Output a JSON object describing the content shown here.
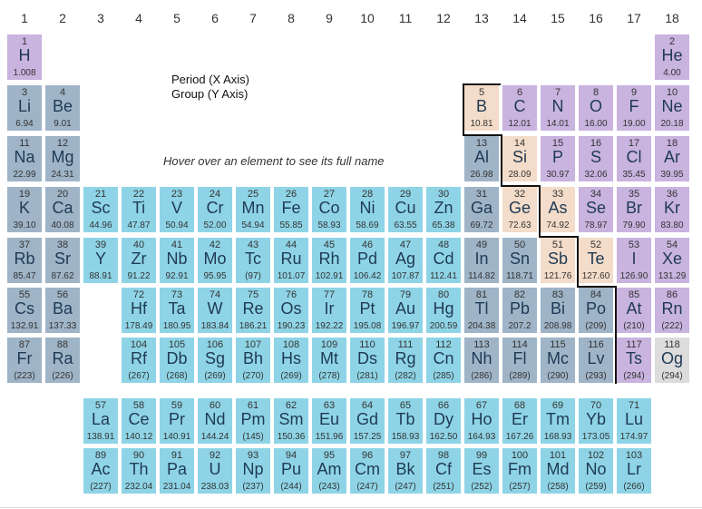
{
  "group_numbers": [
    "1",
    "2",
    "3",
    "4",
    "5",
    "6",
    "7",
    "8",
    "9",
    "10",
    "11",
    "12",
    "13",
    "14",
    "15",
    "16",
    "17",
    "18"
  ],
  "legend": {
    "x_axis": "Period (X Axis)",
    "y_axis": "Group (Y Axis)"
  },
  "hint": "Hover over an element to see its full name",
  "category_colors": {
    "nonmetal": "#c9b3df",
    "alkali": "#9fb4c7",
    "transition": "#8ed4e6",
    "post": "#9fb4c7",
    "metalloid": "#f3dcc9",
    "noble": "#c9b3df",
    "unknown": "#dcdcdc"
  },
  "elements": [
    {
      "n": "1",
      "s": "H",
      "m": "1.008",
      "c": "nonmetal",
      "r": 1,
      "g": 1
    },
    {
      "n": "2",
      "s": "He",
      "m": "4.00",
      "c": "noble",
      "r": 1,
      "g": 18
    },
    {
      "n": "3",
      "s": "Li",
      "m": "6.94",
      "c": "alkali",
      "r": 2,
      "g": 1
    },
    {
      "n": "4",
      "s": "Be",
      "m": "9.01",
      "c": "alkaline",
      "r": 2,
      "g": 2
    },
    {
      "n": "5",
      "s": "B",
      "m": "10.81",
      "c": "metalloid",
      "r": 2,
      "g": 13
    },
    {
      "n": "6",
      "s": "C",
      "m": "12.01",
      "c": "nonmetal",
      "r": 2,
      "g": 14
    },
    {
      "n": "7",
      "s": "N",
      "m": "14.01",
      "c": "nonmetal",
      "r": 2,
      "g": 15
    },
    {
      "n": "8",
      "s": "O",
      "m": "16.00",
      "c": "nonmetal",
      "r": 2,
      "g": 16
    },
    {
      "n": "9",
      "s": "F",
      "m": "19.00",
      "c": "nonmetal",
      "r": 2,
      "g": 17
    },
    {
      "n": "10",
      "s": "Ne",
      "m": "20.18",
      "c": "noble",
      "r": 2,
      "g": 18
    },
    {
      "n": "11",
      "s": "Na",
      "m": "22.99",
      "c": "alkali",
      "r": 3,
      "g": 1
    },
    {
      "n": "12",
      "s": "Mg",
      "m": "24.31",
      "c": "alkaline",
      "r": 3,
      "g": 2
    },
    {
      "n": "13",
      "s": "Al",
      "m": "26.98",
      "c": "post",
      "r": 3,
      "g": 13
    },
    {
      "n": "14",
      "s": "Si",
      "m": "28.09",
      "c": "metalloid",
      "r": 3,
      "g": 14
    },
    {
      "n": "15",
      "s": "P",
      "m": "30.97",
      "c": "nonmetal",
      "r": 3,
      "g": 15
    },
    {
      "n": "16",
      "s": "S",
      "m": "32.06",
      "c": "nonmetal",
      "r": 3,
      "g": 16
    },
    {
      "n": "17",
      "s": "Cl",
      "m": "35.45",
      "c": "nonmetal",
      "r": 3,
      "g": 17
    },
    {
      "n": "18",
      "s": "Ar",
      "m": "39.95",
      "c": "noble",
      "r": 3,
      "g": 18
    },
    {
      "n": "19",
      "s": "K",
      "m": "39.10",
      "c": "alkali",
      "r": 4,
      "g": 1
    },
    {
      "n": "20",
      "s": "Ca",
      "m": "40.08",
      "c": "alkaline",
      "r": 4,
      "g": 2
    },
    {
      "n": "21",
      "s": "Sc",
      "m": "44.96",
      "c": "transition",
      "r": 4,
      "g": 3
    },
    {
      "n": "22",
      "s": "Ti",
      "m": "47.87",
      "c": "transition",
      "r": 4,
      "g": 4
    },
    {
      "n": "23",
      "s": "V",
      "m": "50.94",
      "c": "transition",
      "r": 4,
      "g": 5
    },
    {
      "n": "24",
      "s": "Cr",
      "m": "52.00",
      "c": "transition",
      "r": 4,
      "g": 6
    },
    {
      "n": "25",
      "s": "Mn",
      "m": "54.94",
      "c": "transition",
      "r": 4,
      "g": 7
    },
    {
      "n": "26",
      "s": "Fe",
      "m": "55.85",
      "c": "transition",
      "r": 4,
      "g": 8
    },
    {
      "n": "27",
      "s": "Co",
      "m": "58.93",
      "c": "transition",
      "r": 4,
      "g": 9
    },
    {
      "n": "28",
      "s": "Ni",
      "m": "58.69",
      "c": "transition",
      "r": 4,
      "g": 10
    },
    {
      "n": "29",
      "s": "Cu",
      "m": "63.55",
      "c": "transition",
      "r": 4,
      "g": 11
    },
    {
      "n": "30",
      "s": "Zn",
      "m": "65.38",
      "c": "transition",
      "r": 4,
      "g": 12
    },
    {
      "n": "31",
      "s": "Ga",
      "m": "69.72",
      "c": "post",
      "r": 4,
      "g": 13
    },
    {
      "n": "32",
      "s": "Ge",
      "m": "72.63",
      "c": "metalloid",
      "r": 4,
      "g": 14
    },
    {
      "n": "33",
      "s": "As",
      "m": "74.92",
      "c": "metalloid",
      "r": 4,
      "g": 15
    },
    {
      "n": "34",
      "s": "Se",
      "m": "78.97",
      "c": "nonmetal",
      "r": 4,
      "g": 16
    },
    {
      "n": "35",
      "s": "Br",
      "m": "79.90",
      "c": "nonmetal",
      "r": 4,
      "g": 17
    },
    {
      "n": "36",
      "s": "Kr",
      "m": "83.80",
      "c": "noble",
      "r": 4,
      "g": 18
    },
    {
      "n": "37",
      "s": "Rb",
      "m": "85.47",
      "c": "alkali",
      "r": 5,
      "g": 1
    },
    {
      "n": "38",
      "s": "Sr",
      "m": "87.62",
      "c": "alkaline",
      "r": 5,
      "g": 2
    },
    {
      "n": "39",
      "s": "Y",
      "m": "88.91",
      "c": "transition",
      "r": 5,
      "g": 3
    },
    {
      "n": "40",
      "s": "Zr",
      "m": "91.22",
      "c": "transition",
      "r": 5,
      "g": 4
    },
    {
      "n": "41",
      "s": "Nb",
      "m": "92.91",
      "c": "transition",
      "r": 5,
      "g": 5
    },
    {
      "n": "42",
      "s": "Mo",
      "m": "95.95",
      "c": "transition",
      "r": 5,
      "g": 6
    },
    {
      "n": "43",
      "s": "Tc",
      "m": "(97)",
      "c": "transition",
      "r": 5,
      "g": 7
    },
    {
      "n": "44",
      "s": "Ru",
      "m": "101.07",
      "c": "transition",
      "r": 5,
      "g": 8
    },
    {
      "n": "45",
      "s": "Rh",
      "m": "102.91",
      "c": "transition",
      "r": 5,
      "g": 9
    },
    {
      "n": "46",
      "s": "Pd",
      "m": "106.42",
      "c": "transition",
      "r": 5,
      "g": 10
    },
    {
      "n": "47",
      "s": "Ag",
      "m": "107.87",
      "c": "transition",
      "r": 5,
      "g": 11
    },
    {
      "n": "48",
      "s": "Cd",
      "m": "112.41",
      "c": "transition",
      "r": 5,
      "g": 12
    },
    {
      "n": "49",
      "s": "In",
      "m": "114.82",
      "c": "post",
      "r": 5,
      "g": 13
    },
    {
      "n": "50",
      "s": "Sn",
      "m": "118.71",
      "c": "post",
      "r": 5,
      "g": 14
    },
    {
      "n": "51",
      "s": "Sb",
      "m": "121.76",
      "c": "metalloid",
      "r": 5,
      "g": 15
    },
    {
      "n": "52",
      "s": "Te",
      "m": "127.60",
      "c": "metalloid",
      "r": 5,
      "g": 16
    },
    {
      "n": "53",
      "s": "I",
      "m": "126.90",
      "c": "nonmetal",
      "r": 5,
      "g": 17
    },
    {
      "n": "54",
      "s": "Xe",
      "m": "131.29",
      "c": "noble",
      "r": 5,
      "g": 18
    },
    {
      "n": "55",
      "s": "Cs",
      "m": "132.91",
      "c": "alkali",
      "r": 6,
      "g": 1
    },
    {
      "n": "56",
      "s": "Ba",
      "m": "137.33",
      "c": "alkaline",
      "r": 6,
      "g": 2
    },
    {
      "n": "72",
      "s": "Hf",
      "m": "178.49",
      "c": "transition",
      "r": 6,
      "g": 4
    },
    {
      "n": "73",
      "s": "Ta",
      "m": "180.95",
      "c": "transition",
      "r": 6,
      "g": 5
    },
    {
      "n": "74",
      "s": "W",
      "m": "183.84",
      "c": "transition",
      "r": 6,
      "g": 6
    },
    {
      "n": "75",
      "s": "Re",
      "m": "186.21",
      "c": "transition",
      "r": 6,
      "g": 7
    },
    {
      "n": "76",
      "s": "Os",
      "m": "190.23",
      "c": "transition",
      "r": 6,
      "g": 8
    },
    {
      "n": "77",
      "s": "Ir",
      "m": "192.22",
      "c": "transition",
      "r": 6,
      "g": 9
    },
    {
      "n": "78",
      "s": "Pt",
      "m": "195.08",
      "c": "transition",
      "r": 6,
      "g": 10
    },
    {
      "n": "79",
      "s": "Au",
      "m": "196.97",
      "c": "transition",
      "r": 6,
      "g": 11
    },
    {
      "n": "80",
      "s": "Hg",
      "m": "200.59",
      "c": "transition",
      "r": 6,
      "g": 12
    },
    {
      "n": "81",
      "s": "Tl",
      "m": "204.38",
      "c": "post",
      "r": 6,
      "g": 13
    },
    {
      "n": "82",
      "s": "Pb",
      "m": "207.2",
      "c": "post",
      "r": 6,
      "g": 14
    },
    {
      "n": "83",
      "s": "Bi",
      "m": "208.98",
      "c": "post",
      "r": 6,
      "g": 15
    },
    {
      "n": "84",
      "s": "Po",
      "m": "(209)",
      "c": "post",
      "r": 6,
      "g": 16
    },
    {
      "n": "85",
      "s": "At",
      "m": "(210)",
      "c": "nonmetal",
      "r": 6,
      "g": 17
    },
    {
      "n": "86",
      "s": "Rn",
      "m": "(222)",
      "c": "noble",
      "r": 6,
      "g": 18
    },
    {
      "n": "87",
      "s": "Fr",
      "m": "(223)",
      "c": "alkali",
      "r": 7,
      "g": 1
    },
    {
      "n": "88",
      "s": "Ra",
      "m": "(226)",
      "c": "alkaline",
      "r": 7,
      "g": 2
    },
    {
      "n": "104",
      "s": "Rf",
      "m": "(267)",
      "c": "transition",
      "r": 7,
      "g": 4
    },
    {
      "n": "105",
      "s": "Db",
      "m": "(268)",
      "c": "transition",
      "r": 7,
      "g": 5
    },
    {
      "n": "106",
      "s": "Sg",
      "m": "(269)",
      "c": "transition",
      "r": 7,
      "g": 6
    },
    {
      "n": "107",
      "s": "Bh",
      "m": "(270)",
      "c": "transition",
      "r": 7,
      "g": 7
    },
    {
      "n": "108",
      "s": "Hs",
      "m": "(269)",
      "c": "transition",
      "r": 7,
      "g": 8
    },
    {
      "n": "109",
      "s": "Mt",
      "m": "(278)",
      "c": "transition",
      "r": 7,
      "g": 9
    },
    {
      "n": "110",
      "s": "Ds",
      "m": "(281)",
      "c": "transition",
      "r": 7,
      "g": 10
    },
    {
      "n": "111",
      "s": "Rg",
      "m": "(282)",
      "c": "transition",
      "r": 7,
      "g": 11
    },
    {
      "n": "112",
      "s": "Cn",
      "m": "(285)",
      "c": "transition",
      "r": 7,
      "g": 12
    },
    {
      "n": "113",
      "s": "Nh",
      "m": "(286)",
      "c": "post",
      "r": 7,
      "g": 13
    },
    {
      "n": "114",
      "s": "Fl",
      "m": "(289)",
      "c": "post",
      "r": 7,
      "g": 14
    },
    {
      "n": "115",
      "s": "Mc",
      "m": "(290)",
      "c": "post",
      "r": 7,
      "g": 15
    },
    {
      "n": "116",
      "s": "Lv",
      "m": "(293)",
      "c": "post",
      "r": 7,
      "g": 16
    },
    {
      "n": "117",
      "s": "Ts",
      "m": "(294)",
      "c": "nonmetal",
      "r": 7,
      "g": 17
    },
    {
      "n": "118",
      "s": "Og",
      "m": "(294)",
      "c": "unknown",
      "r": 7,
      "g": 18
    }
  ],
  "lanthanides": [
    {
      "n": "57",
      "s": "La",
      "m": "138.91"
    },
    {
      "n": "58",
      "s": "Ce",
      "m": "140.12"
    },
    {
      "n": "59",
      "s": "Pr",
      "m": "140.91"
    },
    {
      "n": "60",
      "s": "Nd",
      "m": "144.24"
    },
    {
      "n": "61",
      "s": "Pm",
      "m": "(145)"
    },
    {
      "n": "62",
      "s": "Sm",
      "m": "150.36"
    },
    {
      "n": "63",
      "s": "Eu",
      "m": "151.96"
    },
    {
      "n": "64",
      "s": "Gd",
      "m": "157.25"
    },
    {
      "n": "65",
      "s": "Tb",
      "m": "158.93"
    },
    {
      "n": "66",
      "s": "Dy",
      "m": "162.50"
    },
    {
      "n": "67",
      "s": "Ho",
      "m": "164.93"
    },
    {
      "n": "68",
      "s": "Er",
      "m": "167.26"
    },
    {
      "n": "69",
      "s": "Tm",
      "m": "168.93"
    },
    {
      "n": "70",
      "s": "Yb",
      "m": "173.05"
    },
    {
      "n": "71",
      "s": "Lu",
      "m": "174.97"
    }
  ],
  "actinides": [
    {
      "n": "89",
      "s": "Ac",
      "m": "(227)"
    },
    {
      "n": "90",
      "s": "Th",
      "m": "232.04"
    },
    {
      "n": "91",
      "s": "Pa",
      "m": "231.04"
    },
    {
      "n": "92",
      "s": "U",
      "m": "238.03"
    },
    {
      "n": "93",
      "s": "Np",
      "m": "(237)"
    },
    {
      "n": "94",
      "s": "Pu",
      "m": "(244)"
    },
    {
      "n": "95",
      "s": "Am",
      "m": "(243)"
    },
    {
      "n": "96",
      "s": "Cm",
      "m": "(247)"
    },
    {
      "n": "97",
      "s": "Bk",
      "m": "(247)"
    },
    {
      "n": "98",
      "s": "Cf",
      "m": "(251)"
    },
    {
      "n": "99",
      "s": "Es",
      "m": "(252)"
    },
    {
      "n": "100",
      "s": "Fm",
      "m": "(257)"
    },
    {
      "n": "101",
      "s": "Md",
      "m": "(258)"
    },
    {
      "n": "102",
      "s": "No",
      "m": "(259)"
    },
    {
      "n": "103",
      "s": "Lr",
      "m": "(266)"
    }
  ]
}
